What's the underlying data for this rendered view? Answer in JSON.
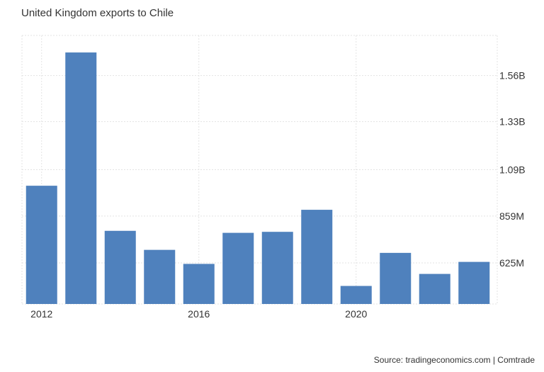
{
  "title": "United Kingdom exports to Chile",
  "source": "Source: tradingeconomics.com | Comtrade",
  "chart_data": {
    "type": "bar",
    "categories": [
      "2012",
      "2013",
      "2014",
      "2015",
      "2016",
      "2017",
      "2018",
      "2019",
      "2020",
      "2021",
      "2022",
      "2023"
    ],
    "values": [
      1010,
      1675,
      785,
      690,
      620,
      775,
      780,
      890,
      510,
      675,
      570,
      630
    ],
    "unit": "USD millions",
    "x_tick_labels": [
      "2012",
      "2016",
      "2020"
    ],
    "y_ticks": [
      {
        "value": 625,
        "label": "625M"
      },
      {
        "value": 859,
        "label": "859M"
      },
      {
        "value": 1090,
        "label": "1.09B"
      },
      {
        "value": 1330,
        "label": "1.33B"
      },
      {
        "value": 1560,
        "label": "1.56B"
      }
    ],
    "ylim": [
      420,
      1760
    ],
    "y_axis_side": "right",
    "grid": true,
    "bar_color": "#4f81bd"
  }
}
